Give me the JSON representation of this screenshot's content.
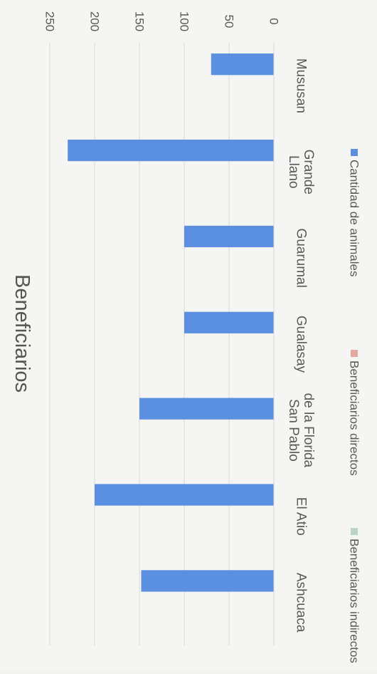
{
  "chart_data": {
    "type": "bar",
    "orientation": "rotated-90-ccw",
    "title": "Beneficiarios",
    "categories": [
      "Mususan",
      "Llano Grande",
      "Guarumal",
      "Gualasay",
      "San Pablo de la Florida",
      "El Atio",
      "Ashcuaca"
    ],
    "category_labels": [
      [
        "Mususan"
      ],
      [
        "Llano",
        "Grande"
      ],
      [
        "Guarumal"
      ],
      [
        "Gualasay"
      ],
      [
        "San Pablo",
        "de la Florida"
      ],
      [
        "El Atio"
      ],
      [
        "Ashcuaca"
      ]
    ],
    "series": [
      {
        "name": "Cantidad de animales",
        "color": "#5b8fe0",
        "values": [
          70,
          230,
          100,
          100,
          150,
          200,
          148
        ]
      },
      {
        "name": "Beneficiarios directos",
        "color": "#e6a7a3",
        "values": [
          0,
          0,
          0,
          0,
          0,
          0,
          0
        ]
      },
      {
        "name": "Beneficiarios indirectos",
        "color": "#b9d4c8",
        "values": [
          0,
          0,
          0,
          0,
          0,
          0,
          0
        ]
      }
    ],
    "yticks": [
      0,
      50,
      100,
      150,
      200,
      250
    ],
    "ylim": [
      0,
      250
    ],
    "grid": true,
    "legend": "bottom"
  }
}
